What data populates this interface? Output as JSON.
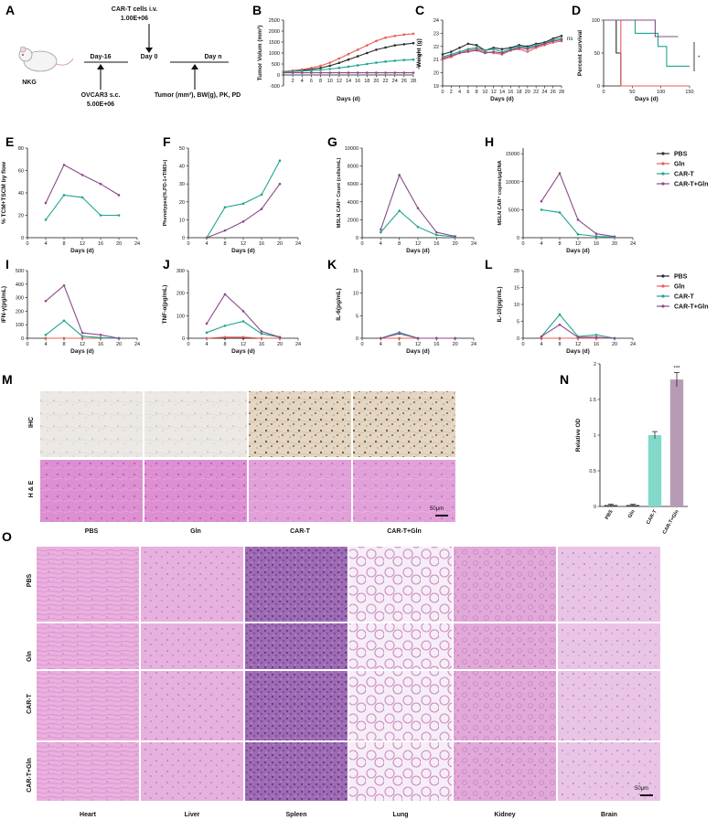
{
  "figure": {
    "colors": {
      "PBS": "#2b2b2b",
      "Gln": "#e85c58",
      "CAR-T": "#1fa58f",
      "CAR-T+Gln": "#8b4a8a",
      "bar_car_t": "#82d9c9",
      "bar_car_t_gln": "#b79bb5"
    },
    "panels": {
      "A": "A",
      "B": "B",
      "C": "C",
      "D": "D",
      "E": "E",
      "F": "F",
      "G": "G",
      "H": "H",
      "I": "I",
      "J": "J",
      "K": "K",
      "L": "L",
      "M": "M",
      "N": "N",
      "O": "O"
    },
    "schematic": {
      "mouse_label": "NKG",
      "car_t_line1": "CAR-T cells i.v.",
      "car_t_line2": "1.00E+06",
      "day_start": "Day-16",
      "day_zero": "Day 0",
      "day_n": "Day n",
      "tumor_line1": "OVCAR3 s.c.",
      "tumor_line2": "5.00E+06",
      "readout": "Tumor (mm³), BW(g), PK, PD"
    },
    "legend": {
      "items": [
        "PBS",
        "Gln",
        "CAR-T",
        "CAR-T+Gln"
      ]
    },
    "significance": {
      "B": "*",
      "C": "ns",
      "D": "*",
      "N": "***"
    },
    "histology": {
      "M_rows": [
        "IHC",
        "H & E"
      ],
      "M_cols": [
        "PBS",
        "Gln",
        "CAR-T",
        "CAR-T+Gln"
      ],
      "M_scalebar": "50μm",
      "O_rows": [
        "PBS",
        "Gln",
        "CAR-T",
        "CAR-T+Gln"
      ],
      "O_cols": [
        "Heart",
        "Liver",
        "Spleen",
        "Lung",
        "Kidney",
        "Brain"
      ],
      "O_scalebar": "50μm"
    }
  },
  "chart_data": [
    {
      "id": "B",
      "type": "line",
      "xlabel": "Days (d)",
      "ylabel": "Tumor Volum (mm³)",
      "xlim": [
        0,
        28
      ],
      "ylim": [
        -500,
        2500
      ],
      "xticks": [
        2,
        4,
        6,
        8,
        10,
        12,
        14,
        16,
        18,
        20,
        22,
        24,
        26,
        28
      ],
      "yticks": [
        -500,
        0,
        500,
        1000,
        1500,
        2000,
        2500
      ],
      "x": [
        0,
        2,
        4,
        6,
        8,
        10,
        12,
        14,
        16,
        18,
        20,
        22,
        24,
        26,
        28
      ],
      "series": [
        {
          "name": "PBS",
          "values": [
            150,
            180,
            220,
            260,
            320,
            420,
            550,
            700,
            850,
            1000,
            1150,
            1250,
            1350,
            1400,
            1450
          ]
        },
        {
          "name": "Gln",
          "values": [
            160,
            200,
            250,
            320,
            420,
            560,
            750,
            950,
            1150,
            1350,
            1550,
            1700,
            1780,
            1840,
            1880
          ]
        },
        {
          "name": "CAR-T",
          "values": [
            140,
            160,
            180,
            200,
            230,
            270,
            320,
            380,
            440,
            500,
            560,
            610,
            650,
            680,
            700
          ]
        },
        {
          "name": "CAR-T+Gln",
          "values": [
            100,
            100,
            100,
            100,
            100,
            100,
            100,
            100,
            100,
            100,
            100,
            100,
            100,
            100,
            100
          ]
        }
      ]
    },
    {
      "id": "C",
      "type": "line",
      "xlabel": "Days (d)",
      "ylabel": "Weight (g)",
      "xlim": [
        0,
        28
      ],
      "ylim": [
        19,
        24
      ],
      "xticks": [
        0,
        2,
        4,
        6,
        8,
        10,
        12,
        14,
        16,
        18,
        20,
        22,
        24,
        26,
        28
      ],
      "yticks": [
        19,
        20,
        21,
        22,
        23,
        24
      ],
      "x": [
        0,
        2,
        4,
        6,
        8,
        10,
        12,
        14,
        16,
        18,
        20,
        22,
        24,
        26,
        28
      ],
      "series": [
        {
          "name": "PBS",
          "values": [
            21.4,
            21.6,
            21.9,
            22.2,
            22.1,
            21.7,
            21.9,
            21.8,
            21.9,
            22.1,
            22.0,
            22.2,
            22.3,
            22.6,
            22.8
          ]
        },
        {
          "name": "Gln",
          "values": [
            21.0,
            21.2,
            21.5,
            21.7,
            21.8,
            21.6,
            21.5,
            21.4,
            21.7,
            21.8,
            21.6,
            21.9,
            22.1,
            22.3,
            22.4
          ]
        },
        {
          "name": "CAR-T",
          "values": [
            21.2,
            21.4,
            21.6,
            21.8,
            21.9,
            21.7,
            21.8,
            21.6,
            21.8,
            22.0,
            21.9,
            22.1,
            22.2,
            22.5,
            22.6
          ]
        },
        {
          "name": "CAR-T+Gln",
          "values": [
            21.1,
            21.3,
            21.5,
            21.6,
            21.7,
            21.5,
            21.6,
            21.5,
            21.7,
            21.9,
            21.8,
            22.0,
            22.2,
            22.4,
            22.5
          ]
        }
      ]
    },
    {
      "id": "D",
      "type": "line",
      "xlabel": "Days (d)",
      "ylabel": "Percent survival",
      "xlim": [
        0,
        150
      ],
      "ylim": [
        0,
        100
      ],
      "xticks": [
        0,
        50,
        100,
        150
      ],
      "yticks": [
        0,
        50,
        100
      ],
      "series": [
        {
          "name": "PBS",
          "x": [
            0,
            22,
            22,
            30,
            30,
            150
          ],
          "values": [
            100,
            100,
            50,
            50,
            0,
            0
          ]
        },
        {
          "name": "Gln",
          "x": [
            0,
            30,
            30,
            150
          ],
          "values": [
            100,
            100,
            0,
            0
          ]
        },
        {
          "name": "CAR-T",
          "x": [
            0,
            55,
            55,
            95,
            95,
            110,
            110,
            150
          ],
          "values": [
            100,
            100,
            80,
            80,
            60,
            60,
            30,
            30
          ]
        },
        {
          "name": "CAR-T+Gln",
          "x": [
            0,
            90,
            90,
            130
          ],
          "values": [
            100,
            100,
            75,
            75
          ]
        }
      ]
    },
    {
      "id": "E",
      "type": "line",
      "xlabel": "Days (d)",
      "ylabel": "% TCM+TSCM by flow",
      "xlim": [
        0,
        24
      ],
      "ylim": [
        0,
        80
      ],
      "xticks": [
        0,
        4,
        8,
        12,
        16,
        20,
        24
      ],
      "yticks": [
        0,
        20,
        40,
        60,
        80
      ],
      "x": [
        4,
        8,
        12,
        16,
        20
      ],
      "series": [
        {
          "name": "CAR-T",
          "values": [
            16,
            38,
            36,
            20,
            20
          ]
        },
        {
          "name": "CAR-T+Gln",
          "values": [
            31,
            65,
            56,
            48,
            38
          ]
        }
      ]
    },
    {
      "id": "F",
      "type": "line",
      "xlabel": "Days (d)",
      "ylabel": "Phenotypes(%,PD-1+TIM3+)",
      "xlim": [
        0,
        24
      ],
      "ylim": [
        0,
        50
      ],
      "xticks": [
        0,
        4,
        8,
        12,
        16,
        20,
        24
      ],
      "yticks": [
        0,
        10,
        20,
        30,
        40,
        50
      ],
      "x": [
        4,
        8,
        12,
        16,
        20
      ],
      "series": [
        {
          "name": "CAR-T",
          "values": [
            0,
            17,
            19,
            24,
            43
          ]
        },
        {
          "name": "CAR-T+Gln",
          "values": [
            0,
            4,
            9,
            16,
            30
          ]
        }
      ]
    },
    {
      "id": "G",
      "type": "line",
      "xlabel": "Days (d)",
      "ylabel": "MSLN CAR⁺ Count (cells/mL)",
      "xlim": [
        0,
        24
      ],
      "ylim": [
        0,
        10000
      ],
      "xticks": [
        0,
        4,
        8,
        12,
        16,
        20,
        24
      ],
      "yticks": [
        0,
        2000,
        4000,
        6000,
        8000,
        10000
      ],
      "x": [
        4,
        8,
        12,
        16,
        20
      ],
      "series": [
        {
          "name": "CAR-T",
          "values": [
            600,
            3000,
            1200,
            300,
            100
          ]
        },
        {
          "name": "CAR-T+Gln",
          "values": [
            900,
            7000,
            3300,
            600,
            150
          ]
        }
      ]
    },
    {
      "id": "H",
      "type": "line",
      "xlabel": "Days (d)",
      "ylabel": "MSLN CAR⁺ copies/μgDNA",
      "xlim": [
        0,
        24
      ],
      "ylim": [
        0,
        16000
      ],
      "xticks": [
        0,
        4,
        8,
        12,
        16,
        20,
        24
      ],
      "yticks": [
        0,
        5000,
        10000,
        15000
      ],
      "x": [
        4,
        8,
        12,
        16,
        20
      ],
      "series": [
        {
          "name": "CAR-T",
          "values": [
            5000,
            4500,
            600,
            250,
            100
          ]
        },
        {
          "name": "CAR-T+Gln",
          "values": [
            6500,
            11500,
            3200,
            700,
            200
          ]
        }
      ]
    },
    {
      "id": "I",
      "type": "line",
      "xlabel": "Days (d)",
      "ylabel": "IFN-γ(pg/mL)",
      "xlim": [
        0,
        24
      ],
      "ylim": [
        0,
        500
      ],
      "xticks": [
        0,
        4,
        8,
        12,
        16,
        20,
        24
      ],
      "yticks": [
        0,
        100,
        200,
        300,
        400,
        500
      ],
      "x": [
        4,
        8,
        12,
        16,
        20
      ],
      "series": [
        {
          "name": "PBS",
          "values": [
            0,
            0,
            0,
            0,
            0
          ]
        },
        {
          "name": "Gln",
          "values": [
            0,
            0,
            0,
            0,
            0
          ]
        },
        {
          "name": "CAR-T",
          "values": [
            25,
            130,
            15,
            5,
            0
          ]
        },
        {
          "name": "CAR-T+Gln",
          "values": [
            275,
            390,
            40,
            25,
            0
          ]
        }
      ]
    },
    {
      "id": "J",
      "type": "line",
      "xlabel": "Days (d)",
      "ylabel": "TNF-α(pg/mL)",
      "xlim": [
        0,
        24
      ],
      "ylim": [
        0,
        300
      ],
      "xticks": [
        0,
        4,
        8,
        12,
        16,
        20,
        24
      ],
      "yticks": [
        0,
        100,
        200,
        300
      ],
      "x": [
        4,
        8,
        12,
        16,
        20
      ],
      "series": [
        {
          "name": "PBS",
          "values": [
            0,
            0,
            0,
            0,
            0
          ]
        },
        {
          "name": "Gln",
          "values": [
            0,
            5,
            5,
            0,
            0
          ]
        },
        {
          "name": "CAR-T",
          "values": [
            25,
            55,
            75,
            20,
            5
          ]
        },
        {
          "name": "CAR-T+Gln",
          "values": [
            65,
            195,
            120,
            30,
            5
          ]
        }
      ]
    },
    {
      "id": "K",
      "type": "line",
      "xlabel": "Days (d)",
      "ylabel": "IL-6(pg/mL)",
      "xlim": [
        0,
        24
      ],
      "ylim": [
        0,
        15
      ],
      "xticks": [
        0,
        4,
        8,
        12,
        16,
        20,
        24
      ],
      "yticks": [
        0,
        5,
        10,
        15
      ],
      "x": [
        4,
        8,
        12,
        16,
        20
      ],
      "series": [
        {
          "name": "PBS",
          "values": [
            0,
            0,
            0,
            0,
            0
          ]
        },
        {
          "name": "Gln",
          "values": [
            0,
            0,
            0,
            0,
            0
          ]
        },
        {
          "name": "CAR-T",
          "values": [
            0,
            1.3,
            0,
            0,
            0
          ]
        },
        {
          "name": "CAR-T+Gln",
          "values": [
            0,
            1.0,
            0,
            0,
            0
          ]
        }
      ]
    },
    {
      "id": "L",
      "type": "line",
      "xlabel": "Days (d)",
      "ylabel": "IL-10(pg/mL)",
      "xlim": [
        0,
        24
      ],
      "ylim": [
        0,
        20
      ],
      "xticks": [
        0,
        4,
        8,
        12,
        16,
        20,
        24
      ],
      "yticks": [
        0,
        5,
        10,
        15,
        20
      ],
      "x": [
        4,
        8,
        12,
        16,
        20
      ],
      "series": [
        {
          "name": "PBS",
          "values": [
            0,
            0,
            0,
            0,
            0
          ]
        },
        {
          "name": "Gln",
          "values": [
            0,
            0,
            0,
            0,
            0
          ]
        },
        {
          "name": "CAR-T",
          "values": [
            0.5,
            7,
            0.5,
            1,
            0
          ]
        },
        {
          "name": "CAR-T+Gln",
          "values": [
            0.5,
            4,
            0.3,
            0.3,
            0
          ]
        }
      ]
    },
    {
      "id": "N",
      "type": "bar",
      "xlabel": "",
      "ylabel": "Relative OD",
      "ylim": [
        0,
        2.0
      ],
      "yticks": [
        0.0,
        0.5,
        1.0,
        1.5,
        2.0
      ],
      "categories": [
        "PBS",
        "Gln",
        "CAR-T",
        "CAR-T+Gln"
      ],
      "values": [
        0.02,
        0.02,
        1.0,
        1.78
      ],
      "errors": [
        0.01,
        0.01,
        0.05,
        0.1
      ]
    }
  ]
}
